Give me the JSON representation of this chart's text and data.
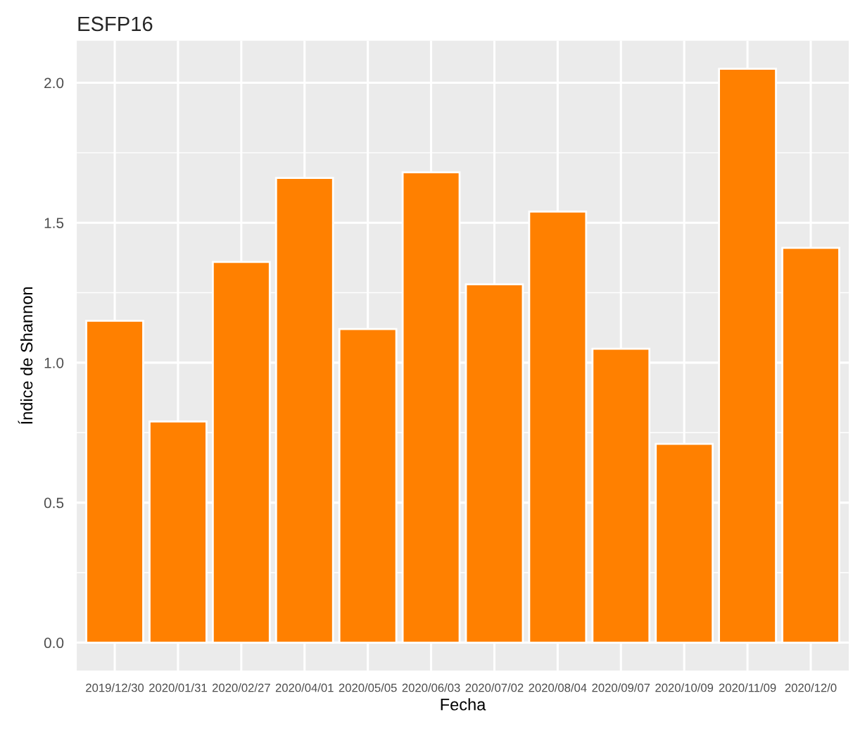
{
  "chart_data": {
    "type": "bar",
    "title": "ESFP16",
    "xlabel": "Fecha",
    "ylabel": "Índice de Shannon",
    "categories": [
      "2019/12/30",
      "2020/01/31",
      "2020/02/27",
      "2020/04/01",
      "2020/05/05",
      "2020/06/03",
      "2020/07/02",
      "2020/08/04",
      "2020/09/07",
      "2020/10/09",
      "2020/11/09",
      "2020/12/0"
    ],
    "values": [
      1.15,
      0.79,
      1.36,
      1.66,
      1.12,
      1.68,
      1.28,
      1.54,
      1.05,
      0.71,
      2.05,
      1.41
    ],
    "color": "#ff8000",
    "ylim": [
      -0.1,
      2.15
    ],
    "yticks": [
      {
        "value": 0,
        "label": "0.0"
      },
      0.5,
      {
        "value": 1,
        "label": "1.0"
      },
      1.5,
      {
        "value": 2,
        "label": "2.0"
      }
    ],
    "grid": true,
    "legend": false
  }
}
